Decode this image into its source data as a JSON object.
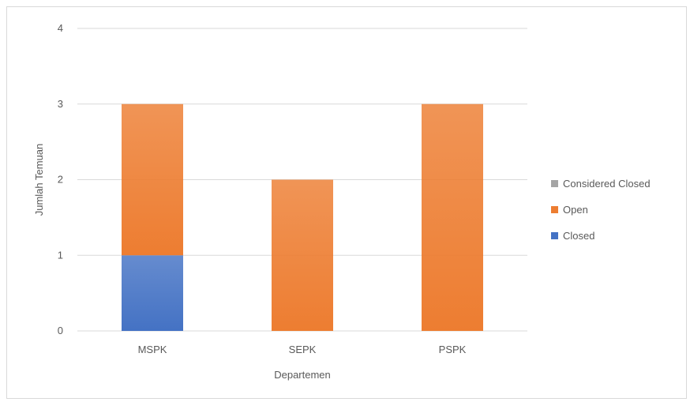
{
  "chart_data": {
    "type": "bar",
    "stacked": true,
    "categories": [
      "MSPK",
      "SEPK",
      "PSPK"
    ],
    "series": [
      {
        "name": "Closed",
        "values": [
          1,
          0,
          0
        ],
        "color": "#4472c4"
      },
      {
        "name": "Open",
        "values": [
          2,
          2,
          3
        ],
        "color": "#ed7d31"
      },
      {
        "name": "Considered Closed",
        "values": [
          0,
          0,
          0
        ],
        "color": "#a5a5a5"
      }
    ],
    "legend_order": [
      "Considered Closed",
      "Open",
      "Closed"
    ],
    "title": "",
    "xlabel": "Departemen",
    "ylabel": "Jumlah Temuan",
    "ylim": [
      0,
      4
    ],
    "yticks": [
      "0",
      "1",
      "2",
      "3",
      "4"
    ],
    "grid": true,
    "legend_position": "right"
  }
}
